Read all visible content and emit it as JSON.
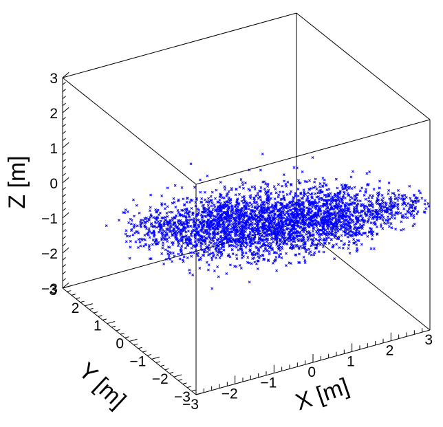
{
  "chart_data": {
    "type": "scatter",
    "projection": "3d",
    "title": "",
    "xlabel": "X [m]",
    "ylabel": "Y [m]",
    "zlabel": "Z [m]",
    "xlim": [
      -3,
      3
    ],
    "ylim": [
      -3,
      3
    ],
    "zlim": [
      -3,
      3
    ],
    "xticks": [
      "−3",
      "−2",
      "−1",
      "0",
      "1",
      "2",
      "3"
    ],
    "yticks": [
      "−3",
      "−2",
      "−1",
      "0",
      "1",
      "2",
      "3"
    ],
    "zticks": [
      "−3",
      "−2",
      "−1",
      "0",
      "1",
      "2",
      "3"
    ],
    "grid": false,
    "marker_color": "#0000ff",
    "marker": "x",
    "series": [
      {
        "clusters": [
          {
            "x": -1.6,
            "y": 1.4,
            "z": -0.9,
            "spread": 0.35,
            "count": 160
          },
          {
            "x": -1.1,
            "y": 1.0,
            "z": -0.8,
            "spread": 0.35,
            "count": 160
          },
          {
            "x": -0.5,
            "y": 0.6,
            "z": -0.7,
            "spread": 0.35,
            "count": 180
          },
          {
            "x": -0.2,
            "y": 0.3,
            "z": -0.6,
            "spread": 0.4,
            "count": 240
          },
          {
            "x": 0.3,
            "y": 0.0,
            "z": -0.5,
            "spread": 0.4,
            "count": 220
          },
          {
            "x": 0.7,
            "y": -0.3,
            "z": -0.5,
            "spread": 0.35,
            "count": 200
          },
          {
            "x": 1.1,
            "y": -0.7,
            "z": -0.3,
            "spread": 0.35,
            "count": 200
          },
          {
            "x": 1.6,
            "y": -1.1,
            "z": -0.1,
            "spread": 0.4,
            "count": 200
          },
          {
            "x": 2.1,
            "y": -1.4,
            "z": 0.0,
            "spread": 0.4,
            "count": 180
          },
          {
            "x": 2.4,
            "y": -2.0,
            "z": 0.1,
            "spread": 0.25,
            "count": 120
          },
          {
            "x": 2.9,
            "y": -2.6,
            "z": 0.4,
            "spread": 0.25,
            "count": 110
          },
          {
            "x": -0.9,
            "y": -0.5,
            "z": -0.5,
            "spread": 0.45,
            "count": 200
          },
          {
            "x": -0.3,
            "y": -0.9,
            "z": -0.4,
            "spread": 0.4,
            "count": 220
          },
          {
            "x": 0.4,
            "y": -1.3,
            "z": -0.3,
            "spread": 0.4,
            "count": 240
          },
          {
            "x": 0.9,
            "y": -1.9,
            "z": 0.1,
            "spread": 0.35,
            "count": 220
          },
          {
            "x": 1.5,
            "y": -2.2,
            "z": 0.0,
            "spread": 0.3,
            "count": 140
          },
          {
            "x": -1.4,
            "y": 0.3,
            "z": -0.7,
            "spread": 0.4,
            "count": 140
          },
          {
            "x": 0.0,
            "y": 1.2,
            "z": -0.8,
            "spread": 0.45,
            "count": 120
          },
          {
            "x": 1.2,
            "y": 0.2,
            "z": -0.4,
            "spread": 0.5,
            "count": 120
          }
        ]
      }
    ]
  }
}
